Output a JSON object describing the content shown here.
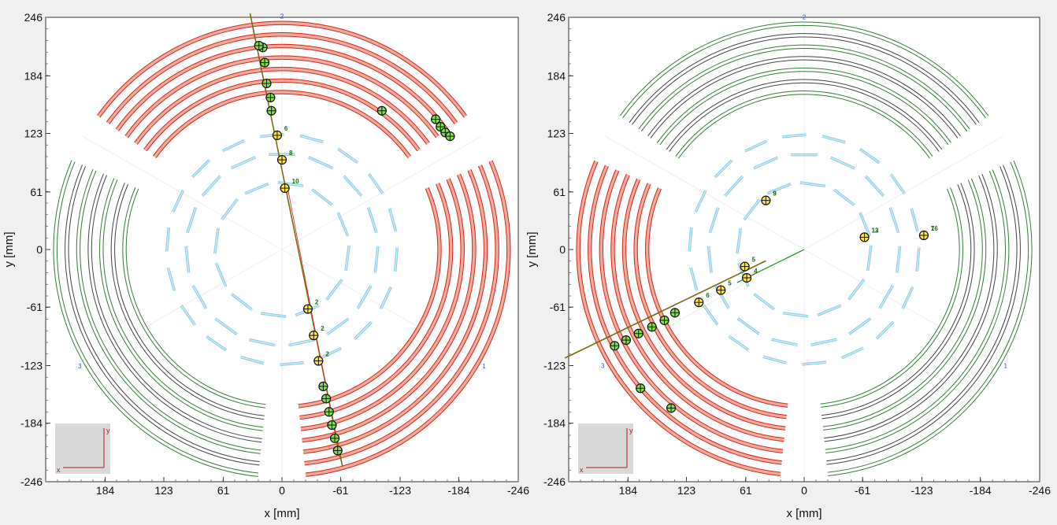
{
  "panels": [
    {
      "name": "left",
      "x_ticks": [
        "184",
        "123",
        "61",
        "0",
        "-61",
        "-123",
        "-184",
        "-246"
      ],
      "y_ticks": [
        "246",
        "184",
        "123",
        "61",
        "0",
        "-61",
        "-123",
        "-184",
        "-246"
      ],
      "xlabel": "x [mm]",
      "ylabel": "y [mm]",
      "sector_labels": [
        "1",
        "2",
        "3"
      ],
      "red_sectors": [
        1,
        2
      ],
      "inner_hits": [
        "10",
        "8",
        "6",
        "2",
        "2",
        "2"
      ],
      "track_angle_deg": 98,
      "inset": {
        "x": "x",
        "y": "y"
      }
    },
    {
      "name": "right",
      "x_ticks": [
        "184",
        "123",
        "61",
        "0",
        "-61",
        "-123",
        "-184",
        "-246"
      ],
      "y_ticks": [
        "246",
        "184",
        "123",
        "61",
        "0",
        "-61",
        "-123",
        "-184",
        "-246"
      ],
      "xlabel": "x [mm]",
      "ylabel": "y [mm]",
      "sector_labels": [
        "1",
        "2",
        "3"
      ],
      "red_sectors": [
        3
      ],
      "inner_hits": [
        "9",
        "12",
        "7",
        "5",
        "4",
        "5",
        "6",
        "9",
        "13",
        "16"
      ],
      "track_angle_deg": 207,
      "inset": {
        "x": "x",
        "y": "y"
      }
    }
  ],
  "chart_data": {
    "type": "scatter",
    "xlim": [
      246,
      -246
    ],
    "ylim": [
      -246,
      246
    ],
    "x_reversed": true,
    "grid": false,
    "detector": {
      "outer_layers_mm": [
        164,
        176,
        188,
        200,
        212,
        224,
        236
      ],
      "sectors": [
        "1",
        "2",
        "3"
      ],
      "inner_layers": [
        {
          "radius_mm": 70,
          "segments": 12
        },
        {
          "radius_mm": 100,
          "segments": 15
        },
        {
          "radius_mm": 120,
          "segments": 18
        }
      ]
    },
    "series": [
      {
        "panel": "left",
        "points": [
          {
            "x": -3,
            "y": 65
          },
          {
            "x": 0,
            "y": 95
          },
          {
            "x": 5,
            "y": 121
          },
          {
            "x": 11,
            "y": 147
          },
          {
            "x": 12,
            "y": 161
          },
          {
            "x": 16,
            "y": 176
          },
          {
            "x": 18,
            "y": 198
          },
          {
            "x": 20,
            "y": 214
          },
          {
            "x": 24,
            "y": 216
          },
          {
            "x": -104,
            "y": 147
          },
          {
            "x": -160,
            "y": 138
          },
          {
            "x": -165,
            "y": 130
          },
          {
            "x": -170,
            "y": 124
          },
          {
            "x": -175,
            "y": 120
          },
          {
            "x": -27,
            "y": -63
          },
          {
            "x": -33,
            "y": -91
          },
          {
            "x": -38,
            "y": -118
          },
          {
            "x": -43,
            "y": -145
          },
          {
            "x": -46,
            "y": -158
          },
          {
            "x": -49,
            "y": -172
          },
          {
            "x": -52,
            "y": -186
          },
          {
            "x": -55,
            "y": -200
          },
          {
            "x": -58,
            "y": -213
          }
        ]
      },
      {
        "panel": "right",
        "points": [
          {
            "x": 40,
            "y": 52
          },
          {
            "x": -63,
            "y": 13
          },
          {
            "x": -125,
            "y": 15
          },
          {
            "x": 62,
            "y": -18
          },
          {
            "x": 60,
            "y": -30
          },
          {
            "x": 87,
            "y": -43
          },
          {
            "x": 110,
            "y": -56
          },
          {
            "x": 135,
            "y": -67
          },
          {
            "x": 146,
            "y": -75
          },
          {
            "x": 159,
            "y": -82
          },
          {
            "x": 173,
            "y": -89
          },
          {
            "x": 186,
            "y": -96
          },
          {
            "x": 198,
            "y": -102
          },
          {
            "x": 171,
            "y": -147
          },
          {
            "x": 139,
            "y": -168
          }
        ]
      }
    ]
  }
}
